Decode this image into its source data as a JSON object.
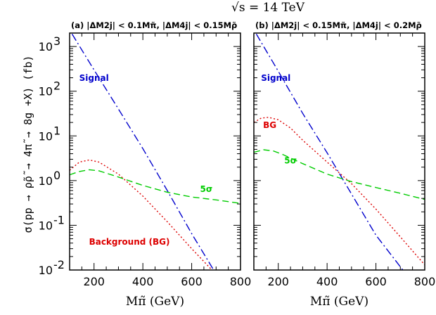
{
  "figure": {
    "title": "√s  = 14 TeV",
    "ylabel": "σ(pp → ρ̃ρ̃ → 4π̃ → 8g +X) (fb)"
  },
  "chart_data": [
    {
      "type": "line",
      "subtitle": "(a) |ΔM2j| < 0.1Mπ̃, |ΔM4j| < 0.15Mρ̃",
      "xlabel": "Mπ̃ (GeV)",
      "xlim": [
        100,
        800
      ],
      "ylim": [
        0.01,
        2000
      ],
      "yscale": "log",
      "xticks": [
        200,
        400,
        600,
        800
      ],
      "yticks": [
        0.01,
        0.1,
        1,
        10,
        100,
        1000
      ],
      "ytick_labels": [
        "10^-2",
        "10^-1",
        "10^0",
        "10^1",
        "10^2",
        "10^3"
      ],
      "series": [
        {
          "name": "Signal",
          "color": "#0000cc",
          "style": "dashdot",
          "x": [
            110,
            200,
            300,
            400,
            500,
            600,
            690
          ],
          "y": [
            1900,
            300,
            40,
            5.2,
            0.6,
            0.065,
            0.01
          ]
        },
        {
          "name": "Background (BG)",
          "color": "#dd0000",
          "style": "dotted",
          "x": [
            100,
            140,
            180,
            220,
            300,
            400,
            500,
            600,
            700
          ],
          "y": [
            1.7,
            2.6,
            2.9,
            2.6,
            1.4,
            0.45,
            0.12,
            0.03,
            0.008
          ]
        },
        {
          "name": "5σ",
          "color": "#00cc00",
          "style": "dashed",
          "x": [
            100,
            140,
            180,
            220,
            300,
            400,
            500,
            600,
            700,
            800
          ],
          "y": [
            1.35,
            1.6,
            1.75,
            1.65,
            1.2,
            0.78,
            0.55,
            0.43,
            0.37,
            0.31
          ]
        }
      ],
      "annotations": [
        {
          "text": "Signal",
          "x": 200,
          "y": 170,
          "color": "#0000cc"
        },
        {
          "text": "5σ",
          "x": 660,
          "y": 0.56,
          "color": "#00cc00"
        },
        {
          "text": "Background (BG)",
          "x": 345,
          "y": 0.037,
          "color": "#dd0000"
        }
      ]
    },
    {
      "type": "line",
      "subtitle": "(b) |ΔM2j| < 0.15Mπ̃, |ΔM4j| < 0.2Mρ̃",
      "xlabel": "Mπ̃ (GeV)",
      "xlim": [
        100,
        800
      ],
      "ylim": [
        0.01,
        2000
      ],
      "yscale": "log",
      "xticks": [
        200,
        400,
        600,
        800
      ],
      "yticks": [
        0.01,
        0.1,
        1,
        10,
        100,
        1000
      ],
      "ytick_labels": [],
      "series": [
        {
          "name": "Signal",
          "color": "#0000cc",
          "style": "dashdot",
          "x": [
            110,
            200,
            300,
            400,
            500,
            600,
            710
          ],
          "y": [
            1900,
            280,
            32,
            4.2,
            0.5,
            0.06,
            0.01
          ]
        },
        {
          "name": "BG",
          "color": "#dd0000",
          "style": "dotted",
          "x": [
            100,
            130,
            160,
            200,
            250,
            300,
            400,
            500,
            600,
            700,
            800
          ],
          "y": [
            20,
            25,
            26,
            23,
            15,
            8,
            2.6,
            0.85,
            0.23,
            0.055,
            0.013
          ]
        },
        {
          "name": "5σ",
          "color": "#00cc00",
          "style": "dashed",
          "x": [
            100,
            140,
            180,
            220,
            300,
            400,
            500,
            600,
            700,
            800
          ],
          "y": [
            4.3,
            4.9,
            4.6,
            3.8,
            2.4,
            1.4,
            0.95,
            0.7,
            0.52,
            0.38
          ]
        }
      ],
      "annotations": [
        {
          "text": "Signal",
          "x": 190,
          "y": 170,
          "color": "#0000cc"
        },
        {
          "text": "BG",
          "x": 165,
          "y": 15,
          "color": "#dd0000"
        },
        {
          "text": "5σ",
          "x": 250,
          "y": 2.4,
          "color": "#00cc00"
        }
      ]
    }
  ]
}
